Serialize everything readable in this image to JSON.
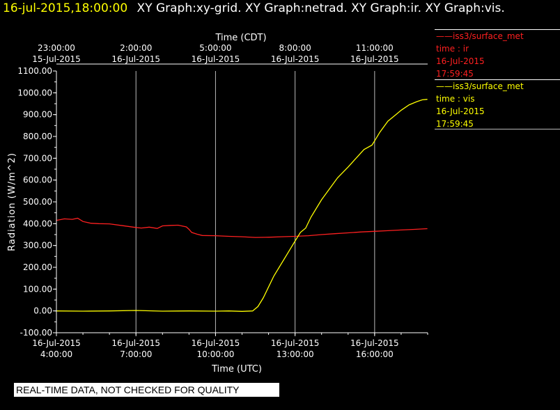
{
  "header": {
    "datetime": "16-jul-2015,18:00:00",
    "titles": "XY Graph:xy-grid.  XY Graph:netrad.  XY Graph:ir.  XY Graph:vis."
  },
  "legend": [
    {
      "marker": "——",
      "source": "iss3/surface_met",
      "label": "time : ir",
      "date": "16-Jul-2015",
      "time": "17:59:45",
      "color": "#ff2020"
    },
    {
      "marker": "——",
      "source": "iss3/surface_met",
      "label": "time : vis",
      "date": "16-Jul-2015",
      "time": "17:59:45",
      "color": "#ffff00"
    }
  ],
  "banner": "REAL-TIME DATA, NOT CHECKED FOR QUALITY",
  "chart_data": {
    "type": "line",
    "ylabel": "Radiation (W/m^2)",
    "xlabel_bottom": "Time (UTC)",
    "xlabel_top": "Time (CDT)",
    "ylim": [
      -100,
      1100
    ],
    "yticks": [
      "-100.00",
      "0.00",
      "100.00",
      "200.00",
      "300.00",
      "400.00",
      "500.00",
      "600.00",
      "700.00",
      "800.00",
      "900.00",
      "1000.00",
      "1100.00"
    ],
    "xlim_hours_utc": [
      4.0,
      18.0
    ],
    "xticks_bottom": [
      {
        "h": 4,
        "date": "16-Jul-2015",
        "time": "4:00:00"
      },
      {
        "h": 7,
        "date": "16-Jul-2015",
        "time": "7:00:00"
      },
      {
        "h": 10,
        "date": "16-Jul-2015",
        "time": "10:00:00"
      },
      {
        "h": 13,
        "date": "16-Jul-2015",
        "time": "13:00:00"
      },
      {
        "h": 16,
        "date": "16-Jul-2015",
        "time": "16:00:00"
      }
    ],
    "xticks_top": [
      {
        "h": 4,
        "time": "23:00:00",
        "date": "15-Jul-2015"
      },
      {
        "h": 7,
        "time": "2:00:00",
        "date": "16-Jul-2015"
      },
      {
        "h": 10,
        "time": "5:00:00",
        "date": "16-Jul-2015"
      },
      {
        "h": 13,
        "time": "8:00:00",
        "date": "16-Jul-2015"
      },
      {
        "h": 16,
        "time": "11:00:00",
        "date": "16-Jul-2015"
      }
    ],
    "grid": true,
    "series": [
      {
        "color": "#ff2020",
        "x": [
          4.0,
          4.3,
          4.6,
          4.8,
          5.0,
          5.3,
          5.6,
          6.0,
          6.5,
          6.9,
          7.2,
          7.5,
          7.8,
          8.0,
          8.3,
          8.6,
          8.9,
          9.0,
          9.1,
          9.3,
          9.5,
          10.0,
          10.5,
          11.0,
          11.5,
          12.0,
          12.5,
          13.0,
          13.5,
          14.0,
          14.5,
          15.0,
          15.5,
          16.0,
          16.5,
          17.0,
          17.5,
          17.99
        ],
        "y": [
          415,
          422,
          420,
          425,
          410,
          402,
          400,
          399,
          391,
          384,
          380,
          384,
          378,
          390,
          392,
          393,
          385,
          374,
          360,
          352,
          346,
          345,
          342,
          340,
          337,
          338,
          340,
          342,
          345,
          350,
          354,
          358,
          362,
          365,
          368,
          371,
          374,
          377
        ]
      },
      {
        "color": "#ffff00",
        "x": [
          4.0,
          5.0,
          6.0,
          7.0,
          8.0,
          9.0,
          10.0,
          10.5,
          11.0,
          11.4,
          11.6,
          11.8,
          12.0,
          12.2,
          12.4,
          12.6,
          12.8,
          13.0,
          13.2,
          13.4,
          13.6,
          13.8,
          14.0,
          14.3,
          14.6,
          15.0,
          15.3,
          15.6,
          15.9,
          16.0,
          16.2,
          16.5,
          16.8,
          17.0,
          17.3,
          17.6,
          17.8,
          17.99
        ],
        "y": [
          0,
          -1,
          0,
          2,
          -1,
          0,
          -1,
          0,
          -2,
          0,
          20,
          60,
          110,
          160,
          200,
          240,
          280,
          320,
          360,
          380,
          430,
          470,
          510,
          560,
          610,
          660,
          700,
          740,
          760,
          780,
          820,
          870,
          900,
          920,
          945,
          960,
          968,
          970
        ]
      }
    ]
  }
}
